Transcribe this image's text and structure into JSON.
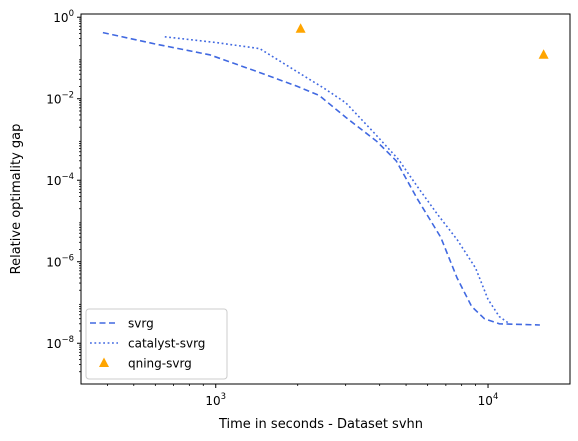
{
  "chart_data": {
    "type": "line",
    "title": "",
    "xlabel": "Time in seconds - Dataset svhn",
    "ylabel": "Relative optimality gap",
    "xscale": "log",
    "yscale": "log",
    "xlim": [
      320,
      20000
    ],
    "ylim": [
      1e-09,
      1.2
    ],
    "x_ticks": [
      {
        "value": 1000,
        "base": "10",
        "exp": "3"
      },
      {
        "value": 10000,
        "base": "10",
        "exp": "4"
      }
    ],
    "y_ticks": [
      {
        "value": 1e-08,
        "base": "10",
        "exp": "−8"
      },
      {
        "value": 1e-06,
        "base": "10",
        "exp": "−6"
      },
      {
        "value": 0.0001,
        "base": "10",
        "exp": "−4"
      },
      {
        "value": 0.01,
        "base": "10",
        "exp": "−2"
      },
      {
        "value": 1,
        "base": "10",
        "exp": "0"
      }
    ],
    "grid": false,
    "legend_position": "lower-left",
    "series": [
      {
        "name": "svrg",
        "style": "dashed",
        "color": "#4169e1",
        "points": [
          [
            385,
            0.42
          ],
          [
            600,
            0.22
          ],
          [
            950,
            0.12
          ],
          [
            1400,
            0.048
          ],
          [
            2000,
            0.02
          ],
          [
            2400,
            0.012
          ],
          [
            3000,
            0.0035
          ],
          [
            3900,
            0.0009
          ],
          [
            4600,
            0.0003
          ],
          [
            5500,
            3.5e-05
          ],
          [
            6700,
            4e-06
          ],
          [
            7700,
            4e-07
          ],
          [
            8700,
            8e-08
          ],
          [
            9700,
            4e-08
          ],
          [
            11000,
            3e-08
          ],
          [
            15500,
            2.8e-08
          ]
        ]
      },
      {
        "name": "catalyst-svrg",
        "style": "dotted",
        "color": "#4169e1",
        "points": [
          [
            650,
            0.33
          ],
          [
            1000,
            0.24
          ],
          [
            1450,
            0.17
          ],
          [
            2000,
            0.045
          ],
          [
            2500,
            0.018
          ],
          [
            3000,
            0.008
          ],
          [
            3800,
            0.0015
          ],
          [
            4700,
            0.00032
          ],
          [
            5500,
            7e-05
          ],
          [
            6500,
            1.5e-05
          ],
          [
            7700,
            3.5e-06
          ],
          [
            9000,
            7e-07
          ],
          [
            10000,
            1.2e-07
          ],
          [
            11000,
            4.5e-08
          ],
          [
            12000,
            3e-08
          ]
        ]
      },
      {
        "name": "qning-svrg",
        "style": "markers",
        "color": "#ffa500",
        "marker": "triangle",
        "points": [
          [
            2050,
            0.52
          ],
          [
            16000,
            0.12
          ]
        ]
      }
    ]
  }
}
